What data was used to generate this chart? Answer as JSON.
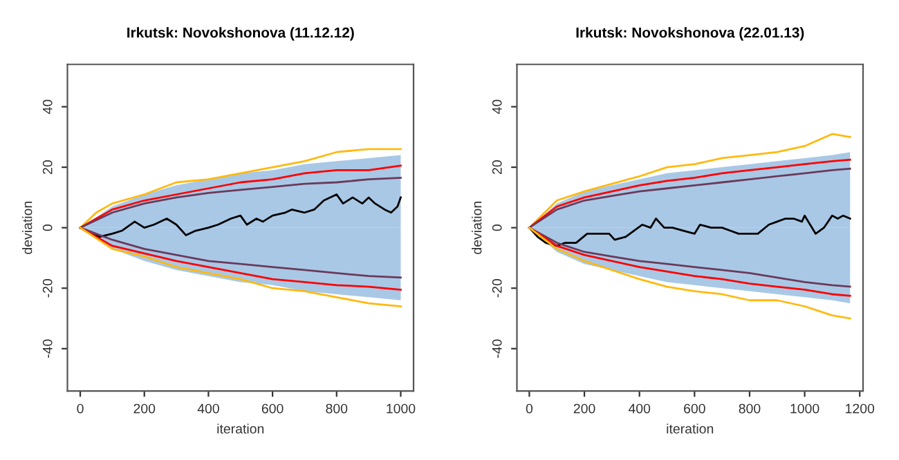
{
  "chart_data": [
    {
      "type": "line",
      "title": "Irkutsk: Novokshonova (11.12.12)",
      "xlabel": "iteration",
      "ylabel": "deviation",
      "xlim": [
        -40,
        1040
      ],
      "ylim": [
        -54,
        54
      ],
      "xticks": [
        0,
        200,
        400,
        600,
        800,
        1000
      ],
      "yticks": [
        -40,
        -20,
        0,
        20,
        40
      ],
      "grid": false,
      "marker": "none",
      "line_style": "solid",
      "series": [
        {
          "type": "area",
          "color": "#a9c8e6",
          "x": [
            0,
            100,
            200,
            300,
            400,
            500,
            600,
            700,
            800,
            900,
            1000
          ],
          "values": [
            0,
            7,
            11,
            14,
            16,
            18,
            19,
            21,
            22,
            23,
            24
          ]
        },
        {
          "type": "area",
          "color": "#a9c8e6",
          "x": [
            0,
            100,
            200,
            300,
            400,
            500,
            600,
            700,
            800,
            900,
            1000
          ],
          "values": [
            0,
            -7,
            -11,
            -14,
            -16,
            -18,
            -19,
            -21,
            -22,
            -23,
            -24
          ]
        },
        {
          "color": "#ffb90f",
          "x": [
            0,
            50,
            100,
            200,
            300,
            400,
            500,
            600,
            700,
            800,
            900,
            1000
          ],
          "values": [
            0,
            5,
            8,
            11,
            15,
            16,
            18,
            20,
            22,
            25,
            26,
            26
          ]
        },
        {
          "color": "#ff0000",
          "x": [
            0,
            100,
            200,
            300,
            400,
            500,
            600,
            700,
            800,
            900,
            1000
          ],
          "values": [
            0,
            6,
            9,
            11,
            13,
            15,
            16,
            18,
            19,
            19,
            20.5
          ]
        },
        {
          "color": "#6b3a5a",
          "x": [
            0,
            100,
            200,
            300,
            400,
            500,
            600,
            700,
            800,
            900,
            1000
          ],
          "values": [
            0,
            5,
            8,
            10,
            11.5,
            12.5,
            13.5,
            14.5,
            15,
            16,
            16.5
          ]
        },
        {
          "color": "#000000",
          "x": [
            0,
            30,
            60,
            100,
            130,
            170,
            200,
            230,
            270,
            300,
            330,
            360,
            400,
            430,
            470,
            500,
            520,
            550,
            570,
            600,
            640,
            660,
            700,
            730,
            760,
            800,
            820,
            850,
            880,
            900,
            920,
            950,
            970,
            990,
            1000
          ],
          "values": [
            0,
            -2,
            -3,
            -2,
            -1,
            2,
            0,
            1,
            3,
            1,
            -2.5,
            -1,
            0,
            1,
            3,
            4,
            1,
            3,
            2,
            4,
            5,
            6,
            5,
            6,
            9,
            11,
            8,
            10,
            8,
            10,
            8,
            6,
            5,
            7,
            10
          ]
        },
        {
          "color": "#6b3a5a",
          "x": [
            0,
            100,
            200,
            300,
            400,
            500,
            600,
            700,
            800,
            900,
            1000
          ],
          "values": [
            0,
            -4,
            -7,
            -9,
            -11,
            -12,
            -13,
            -14,
            -15,
            -16,
            -16.5
          ]
        },
        {
          "color": "#ff0000",
          "x": [
            0,
            100,
            200,
            300,
            400,
            500,
            600,
            700,
            800,
            900,
            1000
          ],
          "values": [
            0,
            -6,
            -8.5,
            -11,
            -13,
            -15,
            -17,
            -18,
            -19,
            -19.5,
            -20.5
          ]
        },
        {
          "color": "#ffb90f",
          "x": [
            0,
            100,
            200,
            300,
            400,
            500,
            600,
            700,
            800,
            900,
            1000
          ],
          "values": [
            0,
            -7,
            -9.5,
            -13,
            -15,
            -17,
            -20,
            -21,
            -23,
            -25,
            -26
          ]
        }
      ]
    },
    {
      "type": "line",
      "title": "Irkutsk: Novokshonova (22.01.13)",
      "xlabel": "iteration",
      "ylabel": "deviation",
      "xlim": [
        -45,
        1212
      ],
      "ylim": [
        -54,
        54
      ],
      "xticks": [
        0,
        200,
        400,
        600,
        800,
        1000,
        1200
      ],
      "yticks": [
        -40,
        -20,
        0,
        20,
        40
      ],
      "grid": false,
      "marker": "none",
      "line_style": "solid",
      "series": [
        {
          "type": "area",
          "color": "#a9c8e6",
          "x": [
            0,
            100,
            200,
            300,
            400,
            500,
            600,
            700,
            800,
            900,
            1000,
            1100,
            1165
          ],
          "values": [
            0,
            8,
            12,
            14,
            16,
            18,
            19,
            20,
            21,
            22,
            23,
            24,
            25
          ]
        },
        {
          "type": "area",
          "color": "#a9c8e6",
          "x": [
            0,
            100,
            200,
            300,
            400,
            500,
            600,
            700,
            800,
            900,
            1000,
            1100,
            1165
          ],
          "values": [
            0,
            -8,
            -12,
            -14,
            -16,
            -18,
            -19,
            -20,
            -21,
            -22,
            -23,
            -24,
            -25
          ]
        },
        {
          "color": "#ffb90f",
          "x": [
            0,
            100,
            200,
            300,
            400,
            500,
            600,
            700,
            800,
            900,
            1000,
            1100,
            1165
          ],
          "values": [
            0,
            9,
            12,
            14.5,
            17,
            20,
            21,
            23,
            24,
            25,
            27,
            31,
            30
          ]
        },
        {
          "color": "#ff0000",
          "x": [
            0,
            100,
            200,
            300,
            400,
            500,
            600,
            700,
            800,
            900,
            1000,
            1100,
            1165
          ],
          "values": [
            0,
            7,
            10,
            12,
            14,
            15.5,
            16.5,
            18,
            19,
            20,
            21,
            22,
            22.5
          ]
        },
        {
          "color": "#6b3a5a",
          "x": [
            0,
            100,
            200,
            300,
            400,
            500,
            600,
            700,
            800,
            900,
            1000,
            1100,
            1165
          ],
          "values": [
            0,
            6,
            9,
            10.5,
            12,
            13,
            14,
            15,
            16,
            17,
            18,
            19,
            19.5
          ]
        },
        {
          "color": "#000000",
          "x": [
            0,
            30,
            60,
            100,
            130,
            170,
            210,
            250,
            290,
            310,
            350,
            380,
            410,
            440,
            460,
            490,
            520,
            560,
            600,
            620,
            660,
            700,
            730,
            760,
            800,
            830,
            870,
            900,
            930,
            960,
            990,
            1000,
            1040,
            1070,
            1100,
            1120,
            1140,
            1165
          ],
          "values": [
            0,
            -3,
            -5,
            -6,
            -5,
            -5,
            -2,
            -2,
            -2,
            -4,
            -3,
            -1,
            1,
            0,
            3,
            0,
            0,
            -1,
            -2,
            1,
            0,
            0,
            -1,
            -2,
            -2,
            -2,
            1,
            2,
            3,
            3,
            2,
            4,
            -2,
            0,
            4,
            3,
            4,
            3
          ]
        },
        {
          "color": "#6b3a5a",
          "x": [
            0,
            100,
            200,
            300,
            400,
            500,
            600,
            700,
            800,
            900,
            1000,
            1100,
            1165
          ],
          "values": [
            0,
            -5,
            -8,
            -9.5,
            -11,
            -12,
            -13,
            -14,
            -15,
            -16.5,
            -18,
            -19,
            -19.5
          ]
        },
        {
          "color": "#ff0000",
          "x": [
            0,
            100,
            200,
            300,
            400,
            500,
            600,
            700,
            800,
            900,
            1000,
            1100,
            1165
          ],
          "values": [
            0,
            -6,
            -9,
            -11,
            -13,
            -14.5,
            -16,
            -17,
            -18.5,
            -19.5,
            -20.5,
            -22,
            -22.5
          ]
        },
        {
          "color": "#ffb90f",
          "x": [
            0,
            100,
            200,
            300,
            400,
            500,
            600,
            700,
            800,
            900,
            1000,
            1100,
            1165
          ],
          "values": [
            0,
            -7,
            -11,
            -14,
            -17,
            -19.5,
            -21,
            -22,
            -24,
            -24,
            -26,
            -29,
            -30
          ]
        }
      ]
    }
  ]
}
